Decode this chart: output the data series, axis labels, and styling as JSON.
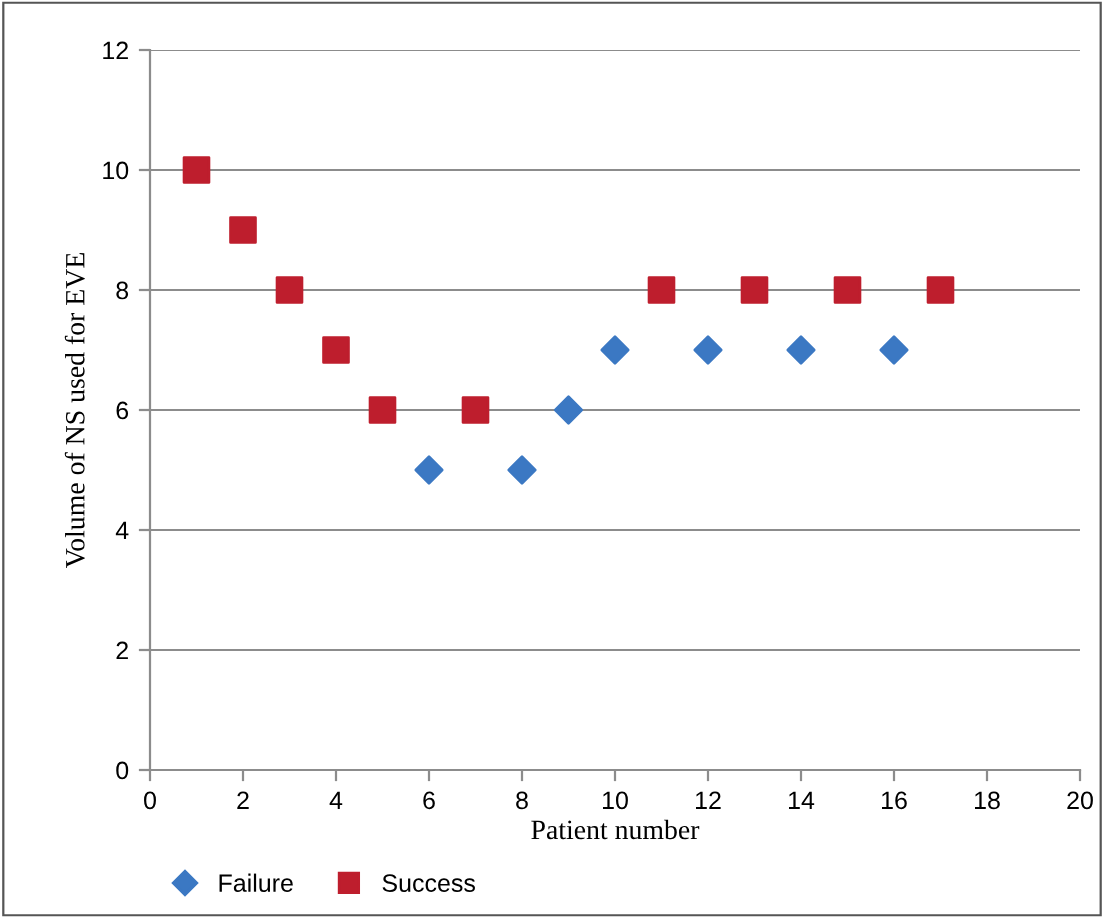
{
  "chart_data": {
    "type": "scatter",
    "xlabel": "Patient number",
    "ylabel": "Volume of NS used for EVE",
    "xlim": [
      0,
      20
    ],
    "xticks": [
      0,
      2,
      4,
      6,
      8,
      10,
      12,
      14,
      16,
      18,
      20
    ],
    "ylim": [
      0,
      12
    ],
    "yticks": [
      0,
      2,
      4,
      6,
      8,
      10,
      12
    ],
    "grid": "y",
    "legend": "bottom left",
    "series": [
      {
        "name": "Failure",
        "color": "#3b78c3",
        "marker": "diamond",
        "x": [
          6,
          8,
          9,
          10,
          12,
          14,
          16
        ],
        "values": [
          5,
          5,
          6,
          7,
          7,
          7,
          7
        ]
      },
      {
        "name": "Success",
        "color": "#be1e2d",
        "marker": "square",
        "x": [
          1,
          2,
          3,
          4,
          5,
          7,
          11,
          13,
          15,
          17
        ],
        "values": [
          10,
          9,
          8,
          7,
          6,
          6,
          8,
          8,
          8,
          8
        ]
      }
    ]
  }
}
